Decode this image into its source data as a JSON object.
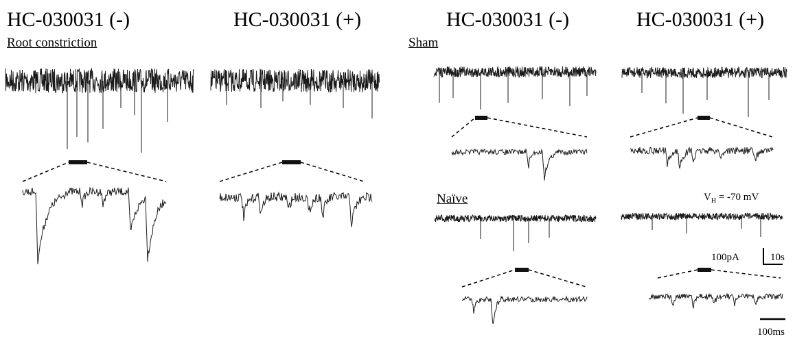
{
  "headers": {
    "left_minus": "HC-030031 (-)",
    "left_plus": "HC-030031 (+)",
    "right_minus": "HC-030031 (-)",
    "right_plus": "HC-030031 (+)"
  },
  "conditions": {
    "root_constriction": "Root constriction",
    "sham": "Sham",
    "naive": "Naïve"
  },
  "holding_potential": {
    "symbol": "V",
    "subscript": "H",
    "value": " = -70 mV"
  },
  "scale_bars": {
    "overview_current": "100pA",
    "overview_time": "10s",
    "zoom_time": "100ms"
  },
  "colors": {
    "trace": "#1a1a1a",
    "bar": "#111111"
  }
}
